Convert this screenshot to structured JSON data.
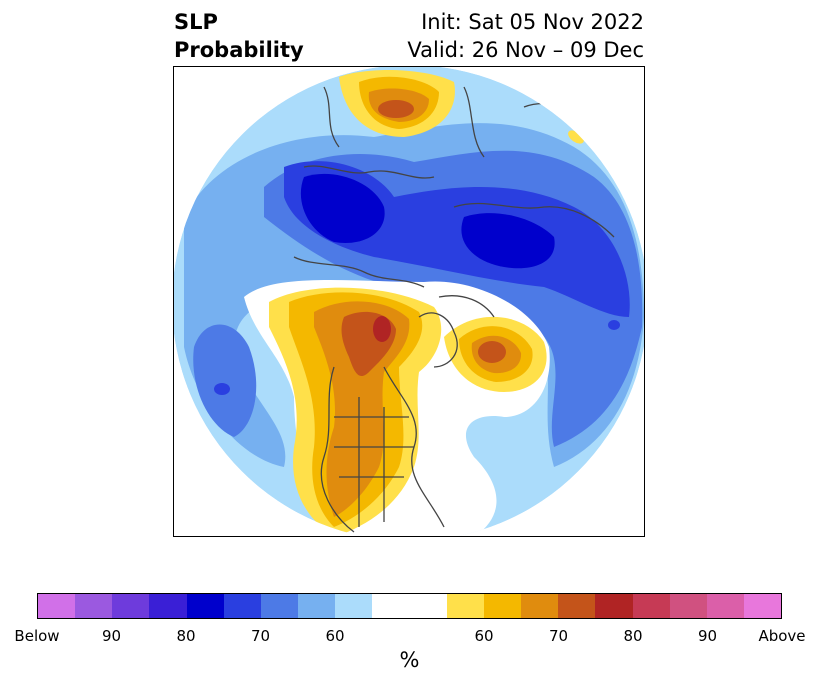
{
  "title": {
    "variable": "SLP",
    "metric": "Probability",
    "init": "Init: Sat 05 Nov 2022",
    "valid": "Valid: 26 Nov – 09 Dec"
  },
  "colorbar": {
    "unit_label": "%",
    "colors": [
      "#d170e8",
      "#9b59e0",
      "#6e3bdc",
      "#3a1fd6",
      "#0000cc",
      "#2a3fe0",
      "#4d7ae6",
      "#76b0f0",
      "#abdcfb",
      "#ffffff",
      "#ffffff",
      "#ffe04a",
      "#f4b800",
      "#e08c0e",
      "#c4541a",
      "#b02424",
      "#c63a55",
      "#d05180",
      "#db5fa9",
      "#e877dc"
    ],
    "ticks": [
      {
        "label": "Below",
        "index": 0
      },
      {
        "label": "90",
        "index": 2
      },
      {
        "label": "80",
        "index": 4
      },
      {
        "label": "70",
        "index": 6
      },
      {
        "label": "60",
        "index": 8
      },
      {
        "label": "60",
        "index": 12
      },
      {
        "label": "70",
        "index": 14
      },
      {
        "label": "80",
        "index": 16
      },
      {
        "label": "90",
        "index": 18
      },
      {
        "label": "Above",
        "index": 20
      }
    ]
  },
  "map_colors": {
    "blue_60": "#abdcfb",
    "blue_65": "#76b0f0",
    "blue_70": "#4d7ae6",
    "blue_75": "#2a3fe0",
    "blue_80": "#0000cc",
    "red_60": "#ffe04a",
    "red_65": "#f4b800",
    "red_70": "#e08c0e",
    "red_75": "#c4541a",
    "red_80": "#b02424",
    "coast": "#444444"
  }
}
